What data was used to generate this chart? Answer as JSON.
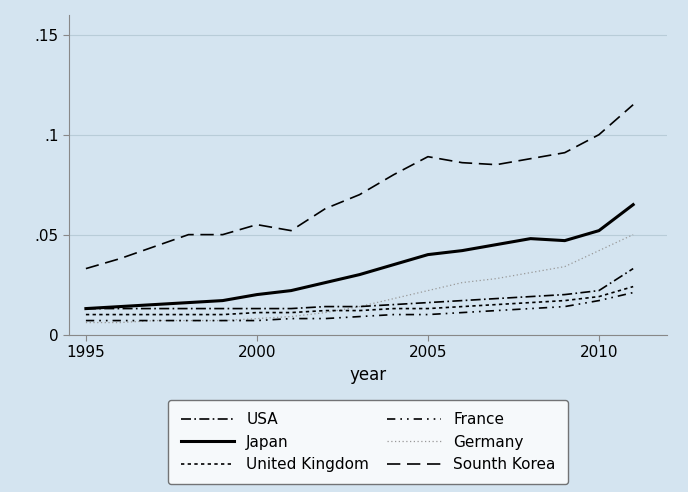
{
  "years": [
    1995,
    1996,
    1997,
    1998,
    1999,
    2000,
    2001,
    2002,
    2003,
    2004,
    2005,
    2006,
    2007,
    2008,
    2009,
    2010,
    2011
  ],
  "USA": [
    0.013,
    0.013,
    0.013,
    0.013,
    0.013,
    0.013,
    0.013,
    0.014,
    0.014,
    0.015,
    0.016,
    0.017,
    0.018,
    0.019,
    0.02,
    0.022,
    0.033
  ],
  "Japan": [
    0.013,
    0.014,
    0.015,
    0.016,
    0.017,
    0.02,
    0.022,
    0.026,
    0.03,
    0.035,
    0.04,
    0.042,
    0.045,
    0.048,
    0.047,
    0.052,
    0.065
  ],
  "UK": [
    0.01,
    0.01,
    0.01,
    0.01,
    0.01,
    0.011,
    0.011,
    0.012,
    0.012,
    0.013,
    0.013,
    0.014,
    0.015,
    0.016,
    0.017,
    0.019,
    0.024
  ],
  "France": [
    0.007,
    0.007,
    0.007,
    0.007,
    0.007,
    0.007,
    0.008,
    0.008,
    0.009,
    0.01,
    0.01,
    0.011,
    0.012,
    0.013,
    0.014,
    0.017,
    0.021
  ],
  "Germany": [
    0.006,
    0.006,
    0.007,
    0.007,
    0.007,
    0.008,
    0.009,
    0.011,
    0.014,
    0.018,
    0.022,
    0.026,
    0.028,
    0.031,
    0.034,
    0.042,
    0.05
  ],
  "South_Korea": [
    0.033,
    0.038,
    0.044,
    0.05,
    0.05,
    0.055,
    0.052,
    0.063,
    0.07,
    0.08,
    0.089,
    0.086,
    0.085,
    0.088,
    0.091,
    0.1,
    0.115
  ],
  "xlim": [
    1994.5,
    2012.0
  ],
  "ylim": [
    0,
    0.16
  ],
  "yticks": [
    0,
    0.05,
    0.1,
    0.15
  ],
  "ytick_labels": [
    "0",
    ".05",
    ".1",
    ".15"
  ],
  "xticks": [
    1995,
    2000,
    2005,
    2010
  ],
  "xlabel": "year",
  "bg_color": "#d4e4f0"
}
